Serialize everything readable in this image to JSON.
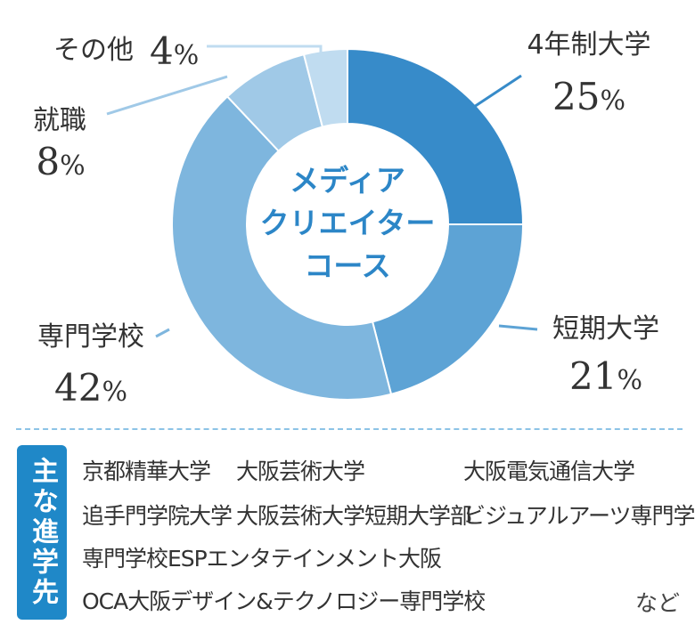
{
  "chart_data": {
    "type": "pie",
    "center_title": [
      "メディア",
      "クリエイター",
      "コース"
    ],
    "slices": [
      {
        "label": "4年制大学",
        "value": 25,
        "color": "#378bc9"
      },
      {
        "label": "短期大学",
        "value": 21,
        "color": "#5da3d5"
      },
      {
        "label": "専門学校",
        "value": 42,
        "color": "#7eb6de"
      },
      {
        "label": "就職",
        "value": 8,
        "color": "#a0c9e7"
      },
      {
        "label": "その他",
        "value": 4,
        "color": "#c0dcf0"
      }
    ],
    "unit": "%"
  },
  "destinations": {
    "badge": "主な進学先",
    "items": [
      "京都精華大学",
      "大阪芸術大学",
      "大阪電気通信大学",
      "追手門学院大学",
      "大阪芸術大学短期大学部",
      "ビジュアルアーツ専門学校",
      "専門学校ESPエンタテインメント大阪",
      "OCA大阪デザイン&テクノロジー専門学校"
    ],
    "note": "など"
  }
}
